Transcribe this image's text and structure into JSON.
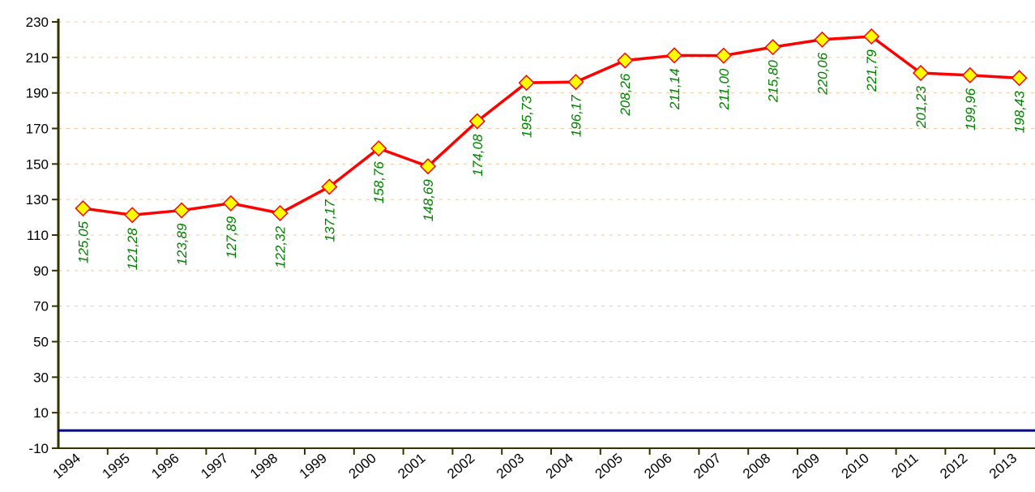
{
  "chart_data": {
    "type": "line",
    "categories": [
      "1994",
      "1995",
      "1996",
      "1997",
      "1998",
      "1999",
      "2000",
      "2001",
      "2002",
      "2003",
      "2004",
      "2005",
      "2006",
      "2007",
      "2008",
      "2009",
      "2010",
      "2011",
      "2012",
      "2013"
    ],
    "values": [
      125.05,
      121.28,
      123.89,
      127.89,
      122.32,
      137.17,
      158.76,
      148.69,
      174.08,
      195.73,
      196.17,
      208.26,
      211.14,
      211.0,
      215.8,
      220.06,
      221.79,
      201.23,
      199.96,
      198.43
    ],
    "value_labels": [
      "125,05",
      "121,28",
      "123,89",
      "127,89",
      "122,32",
      "137,17",
      "158,76",
      "148,69",
      "174,08",
      "195,73",
      "196,17",
      "208,26",
      "211,14",
      "211,00",
      "215,80",
      "220,06",
      "221,79",
      "201,23",
      "199,96",
      "198,43"
    ],
    "color": "#ff0000",
    "marker_color": "#ffff00",
    "label_color": "#008000",
    "ylim": [
      -10,
      230
    ],
    "yticks": [
      -10,
      10,
      30,
      50,
      70,
      90,
      110,
      130,
      150,
      170,
      190,
      210,
      230
    ],
    "grid": true
  }
}
